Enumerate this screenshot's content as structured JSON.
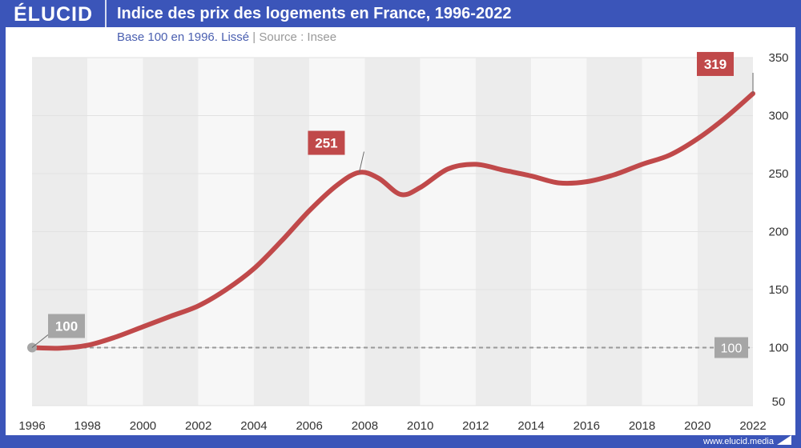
{
  "header": {
    "logo": "ÉLUCID",
    "title": "Indice des prix des logements en France, 1996-2022"
  },
  "subtitle": {
    "main": "Base 100 en 1996. Lissé",
    "sep": "|",
    "source": "Source : Insee"
  },
  "footer": {
    "url": "www.elucid.media"
  },
  "chart_data": {
    "type": "line",
    "title": "Indice des prix des logements en France, 1996-2022",
    "xlabel": "",
    "ylabel": "",
    "xlim": [
      1996,
      2022
    ],
    "ylim": [
      50,
      350
    ],
    "x_ticks": [
      "1996",
      "1998",
      "2000",
      "2002",
      "2004",
      "2006",
      "2008",
      "2010",
      "2012",
      "2014",
      "2016",
      "2018",
      "2020",
      "2022"
    ],
    "y_ticks": [
      "50",
      "100",
      "150",
      "200",
      "250",
      "300",
      "350"
    ],
    "x": [
      1996,
      1997,
      1998,
      1999,
      2000,
      2001,
      2002,
      2003,
      2004,
      2005,
      2006,
      2007,
      2007.8,
      2008.5,
      2009.3,
      2010,
      2011,
      2012,
      2013,
      2014,
      2015,
      2016,
      2017,
      2018,
      2019,
      2020,
      2021,
      2022
    ],
    "series": [
      {
        "name": "Indice",
        "color": "#c0494a",
        "values": [
          100,
          99.5,
          102,
          109,
          118,
          127,
          136,
          150,
          168,
          192,
          218,
          240,
          251,
          246,
          232,
          238,
          254,
          258,
          253,
          248,
          242,
          243,
          249,
          258,
          266,
          280,
          298,
          319
        ]
      }
    ],
    "reference_line": {
      "value": 100,
      "label": "100",
      "color": "#999999"
    },
    "annotations": [
      {
        "x": 1996,
        "y": 100,
        "label": "100",
        "color": "#a6a6a6"
      },
      {
        "x": 2007.8,
        "y": 251,
        "label": "251",
        "color": "#c0494a"
      },
      {
        "x": 2022,
        "y": 319,
        "label": "319",
        "color": "#c0494a"
      }
    ]
  }
}
